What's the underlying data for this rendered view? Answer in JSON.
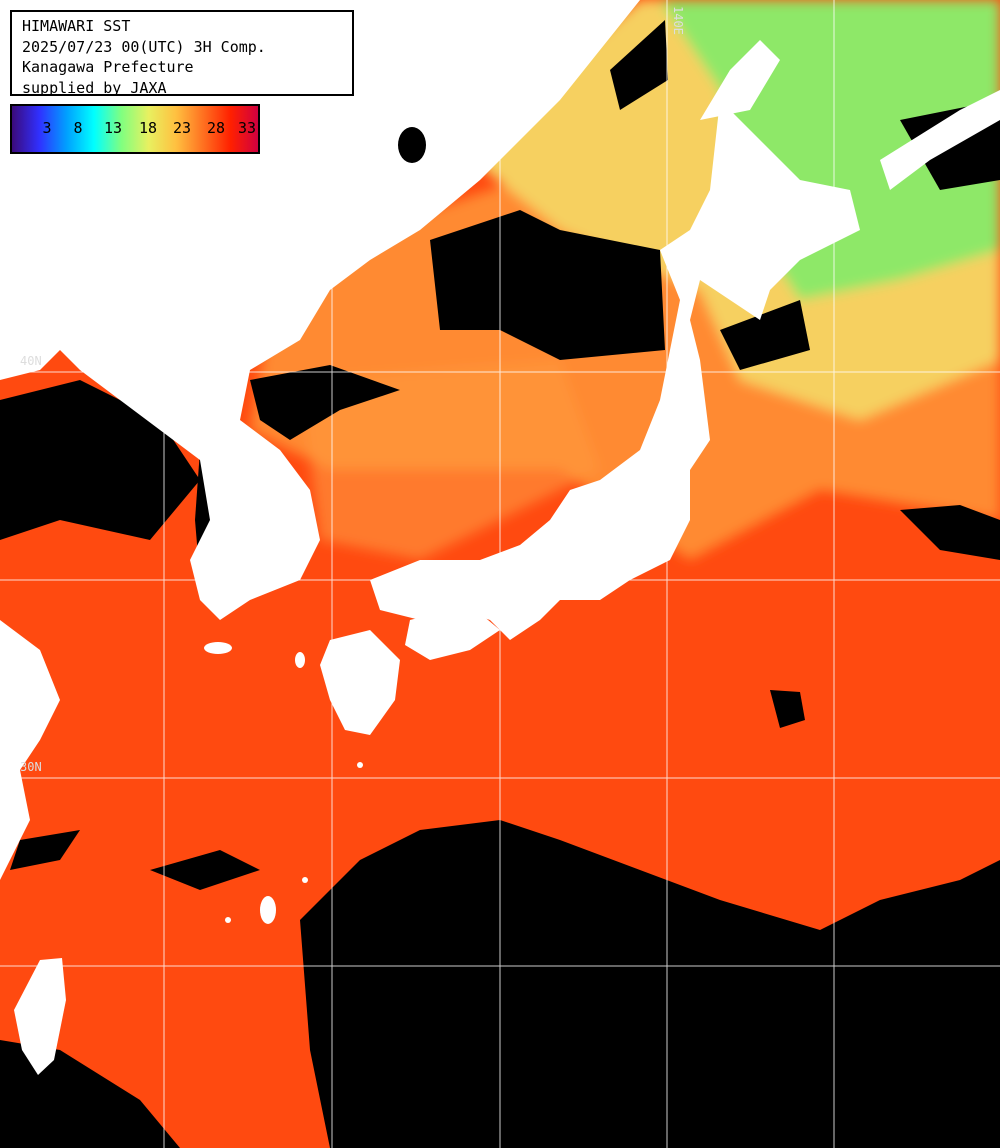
{
  "header": {
    "title": "HIMAWARI SST",
    "datetime": "2025/07/23 00(UTC) 3H Comp.",
    "region": "Kanagawa Prefecture",
    "credit": "supplied by JAXA"
  },
  "legend": {
    "ticks": [
      "3",
      "8",
      "13",
      "18",
      "23",
      "28",
      "33"
    ],
    "stops": [
      "#3b0a7a",
      "#3030ff",
      "#00a0ff",
      "#00ffff",
      "#80ff80",
      "#e8f060",
      "#ffc040",
      "#ff7020",
      "#ff2000",
      "#d00040"
    ]
  },
  "graticule_labels": [
    "40N",
    "30N",
    "140E"
  ],
  "colors": {
    "land": "#ffffff",
    "cloud_mask": "#000000",
    "warm_sea": "#ff4a10",
    "mid_sea": "#ff8a30",
    "cool_sea": "#f6d060",
    "cold_sea": "#8ee868",
    "grid": "#ffffff"
  }
}
